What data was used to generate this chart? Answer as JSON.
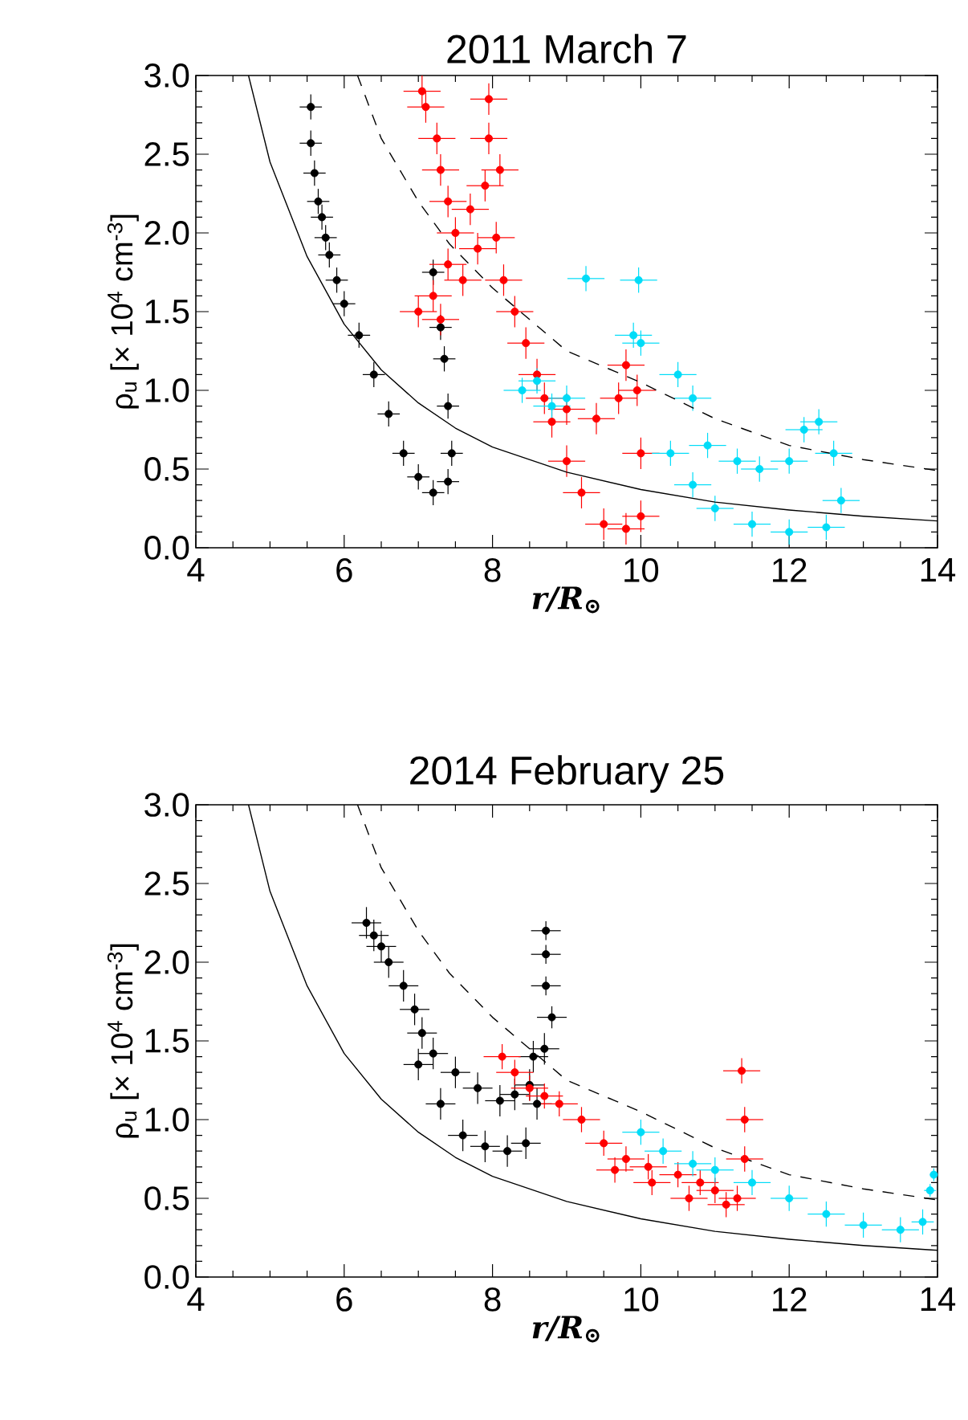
{
  "chart_data": [
    {
      "type": "scatter",
      "title": "2011 March 7",
      "xlabel": "r/R$_{⊙}$",
      "ylabel": "ρ$_{u}$ [× 10$^{4}$ cm$^{-3}$]",
      "xlim": [
        4,
        14
      ],
      "ylim": [
        0,
        3
      ],
      "xticks": [
        4,
        6,
        8,
        10,
        12,
        14
      ],
      "yticks": [
        {
          "value": 0,
          "label": "0.0"
        },
        {
          "value": 0.5,
          "label": "0.5"
        },
        {
          "value": 1,
          "label": "1.0"
        },
        {
          "value": 1.5,
          "label": "1.5"
        },
        {
          "value": 2,
          "label": "2.0"
        },
        {
          "value": 2.5,
          "label": "2.5"
        },
        {
          "value": 3,
          "label": "3.0"
        }
      ],
      "series": [
        {
          "color": "#000000",
          "marker": "circle",
          "x": [
            5.55,
            5.55,
            5.6,
            5.65,
            5.7,
            5.75,
            5.8,
            5.9,
            6.0,
            6.2,
            6.4,
            6.6,
            6.8,
            7.0,
            7.2,
            7.4,
            7.45,
            7.4,
            7.35,
            7.3,
            7.2
          ],
          "values": [
            2.8,
            2.57,
            2.38,
            2.2,
            2.1,
            1.97,
            1.86,
            1.7,
            1.55,
            1.35,
            1.1,
            0.85,
            0.6,
            0.45,
            0.35,
            0.42,
            0.6,
            0.9,
            1.2,
            1.4,
            1.75
          ],
          "errors": [
            0.08,
            0.08,
            0.08,
            0.08,
            0.08,
            0.08,
            0.08,
            0.08,
            0.08,
            0.08,
            0.08,
            0.08,
            0.08,
            0.08,
            0.08,
            0.08,
            0.08,
            0.08,
            0.08,
            0.08,
            0.08
          ],
          "xerrors": [
            0.15,
            0.15,
            0.15,
            0.15,
            0.15,
            0.15,
            0.15,
            0.15,
            0.15,
            0.15,
            0.15,
            0.15,
            0.15,
            0.15,
            0.15,
            0.15,
            0.15,
            0.15,
            0.15,
            0.15,
            0.15
          ]
        },
        {
          "color": "#ff0000",
          "marker": "circle",
          "x": [
            7.05,
            7.1,
            7.25,
            7.3,
            7.4,
            7.5,
            7.4,
            7.2,
            7.0,
            7.3,
            7.6,
            7.8,
            7.7,
            7.9,
            7.95,
            7.95,
            8.1,
            8.05,
            8.15,
            8.3,
            8.45,
            8.6,
            8.8,
            9.0,
            9.2,
            9.5,
            9.8,
            10.0,
            10.0,
            9.95,
            9.8,
            9.7,
            9.4,
            9.0,
            8.7
          ],
          "values": [
            2.9,
            2.8,
            2.6,
            2.4,
            2.2,
            2.0,
            1.8,
            1.6,
            1.5,
            1.45,
            1.7,
            1.9,
            2.15,
            2.3,
            2.6,
            2.85,
            2.4,
            1.97,
            1.7,
            1.5,
            1.3,
            1.1,
            0.8,
            0.55,
            0.35,
            0.15,
            0.12,
            0.2,
            0.6,
            1.0,
            1.16,
            0.95,
            0.82,
            0.88,
            0.95
          ],
          "errors": [
            0.1,
            0.1,
            0.1,
            0.1,
            0.1,
            0.1,
            0.1,
            0.1,
            0.1,
            0.1,
            0.1,
            0.1,
            0.1,
            0.1,
            0.1,
            0.1,
            0.1,
            0.1,
            0.1,
            0.1,
            0.1,
            0.1,
            0.1,
            0.1,
            0.1,
            0.1,
            0.1,
            0.1,
            0.1,
            0.1,
            0.1,
            0.1,
            0.1,
            0.1,
            0.1
          ],
          "xerrors": [
            0.25,
            0.25,
            0.25,
            0.25,
            0.25,
            0.25,
            0.25,
            0.25,
            0.25,
            0.25,
            0.25,
            0.25,
            0.25,
            0.25,
            0.25,
            0.25,
            0.25,
            0.25,
            0.25,
            0.25,
            0.25,
            0.25,
            0.25,
            0.25,
            0.25,
            0.25,
            0.25,
            0.25,
            0.25,
            0.25,
            0.25,
            0.25,
            0.25,
            0.25,
            0.25
          ]
        },
        {
          "color": "#00dcf8",
          "marker": "circle",
          "x": [
            8.4,
            8.6,
            8.8,
            9.0,
            9.26,
            9.97,
            9.9,
            10.0,
            10.5,
            10.7,
            10.4,
            10.7,
            11.0,
            11.5,
            12.0,
            12.5,
            12.7,
            12.6,
            12.4,
            12.2,
            12.0,
            11.6,
            11.3,
            10.9
          ],
          "values": [
            1.0,
            1.06,
            0.9,
            0.95,
            1.71,
            1.7,
            1.35,
            1.3,
            1.1,
            0.95,
            0.6,
            0.4,
            0.25,
            0.15,
            0.1,
            0.13,
            0.3,
            0.6,
            0.8,
            0.75,
            0.55,
            0.5,
            0.55,
            0.65
          ],
          "errors": [
            0.08,
            0.08,
            0.08,
            0.08,
            0.08,
            0.08,
            0.08,
            0.08,
            0.08,
            0.08,
            0.08,
            0.08,
            0.08,
            0.08,
            0.08,
            0.08,
            0.08,
            0.08,
            0.08,
            0.08,
            0.08,
            0.08,
            0.08,
            0.08
          ],
          "xerrors": [
            0.25,
            0.25,
            0.25,
            0.25,
            0.25,
            0.25,
            0.25,
            0.25,
            0.25,
            0.25,
            0.25,
            0.25,
            0.25,
            0.25,
            0.25,
            0.25,
            0.25,
            0.25,
            0.25,
            0.25,
            0.25,
            0.25,
            0.25,
            0.25
          ]
        },
        {
          "type": "line",
          "marker": "none",
          "color": "#000000",
          "line_style": "solid",
          "x": [
            4.71,
            5,
            5.5,
            6,
            6.5,
            7,
            7.5,
            8,
            9,
            10,
            11,
            12,
            13,
            14
          ],
          "values": [
            3.0,
            2.45,
            1.85,
            1.42,
            1.13,
            0.92,
            0.76,
            0.64,
            0.48,
            0.37,
            0.29,
            0.24,
            0.2,
            0.17
          ]
        },
        {
          "type": "line",
          "marker": "none",
          "color": "#000000",
          "line_style": "dashed",
          "x": [
            6.18,
            6.5,
            7,
            7.42,
            8,
            8.5,
            9,
            10,
            11,
            12,
            13,
            14
          ],
          "values": [
            3.0,
            2.6,
            2.2,
            1.93,
            1.65,
            1.45,
            1.25,
            1.05,
            0.82,
            0.65,
            0.56,
            0.49
          ]
        }
      ]
    },
    {
      "type": "scatter",
      "title": "2014 February 25",
      "xlabel": "r/R$_{⊙}$",
      "ylabel": "ρ$_{u}$ [× 10$^{4}$ cm$^{-3}$]",
      "xlim": [
        4,
        14
      ],
      "ylim": [
        0,
        3
      ],
      "xticks": [
        4,
        6,
        8,
        10,
        12,
        14
      ],
      "yticks": [
        {
          "value": 0,
          "label": "0.0"
        },
        {
          "value": 0.5,
          "label": "0.5"
        },
        {
          "value": 1,
          "label": "1.0"
        },
        {
          "value": 1.5,
          "label": "1.5"
        },
        {
          "value": 2,
          "label": "2.0"
        },
        {
          "value": 2.5,
          "label": "2.5"
        },
        {
          "value": 3,
          "label": "3.0"
        }
      ],
      "series": [
        {
          "color": "#000000",
          "marker": "circle",
          "x": [
            6.3,
            6.4,
            6.5,
            6.6,
            6.8,
            6.95,
            7.05,
            7.2,
            7.5,
            7.8,
            8.1,
            8.3,
            8.5,
            8.55,
            7.0,
            7.3,
            7.6,
            7.9,
            8.2,
            8.45,
            8.6,
            8.7,
            8.8,
            8.72,
            8.72,
            8.72
          ],
          "values": [
            2.25,
            2.17,
            2.1,
            2.0,
            1.85,
            1.7,
            1.55,
            1.42,
            1.3,
            1.2,
            1.12,
            1.16,
            1.22,
            1.4,
            1.35,
            1.1,
            0.9,
            0.83,
            0.8,
            0.85,
            1.1,
            1.45,
            1.65,
            1.85,
            2.05,
            2.2
          ],
          "errors": [
            0.1,
            0.1,
            0.1,
            0.1,
            0.1,
            0.1,
            0.1,
            0.1,
            0.1,
            0.1,
            0.1,
            0.1,
            0.1,
            0.1,
            0.1,
            0.1,
            0.1,
            0.1,
            0.1,
            0.1,
            0.1,
            0.1,
            0.07,
            0.06,
            0.06,
            0.06
          ],
          "xerrors": [
            0.2,
            0.2,
            0.2,
            0.2,
            0.2,
            0.2,
            0.2,
            0.2,
            0.2,
            0.2,
            0.2,
            0.2,
            0.2,
            0.2,
            0.2,
            0.2,
            0.2,
            0.2,
            0.2,
            0.2,
            0.2,
            0.2,
            0.2,
            0.2,
            0.2,
            0.2
          ]
        },
        {
          "color": "#ff0000",
          "marker": "circle",
          "x": [
            8.13,
            8.3,
            8.5,
            8.7,
            8.9,
            9.2,
            9.5,
            9.8,
            10.1,
            10.5,
            10.8,
            11.0,
            9.65,
            10.15,
            10.65,
            11.15,
            11.3,
            11.4,
            11.4,
            11.36
          ],
          "values": [
            1.4,
            1.3,
            1.2,
            1.15,
            1.1,
            1.0,
            0.85,
            0.75,
            0.7,
            0.65,
            0.6,
            0.55,
            0.68,
            0.6,
            0.5,
            0.46,
            0.5,
            0.75,
            1.0,
            1.31
          ],
          "errors": [
            0.08,
            0.08,
            0.08,
            0.08,
            0.08,
            0.08,
            0.08,
            0.08,
            0.08,
            0.08,
            0.08,
            0.08,
            0.08,
            0.08,
            0.08,
            0.08,
            0.08,
            0.08,
            0.08,
            0.08
          ],
          "xerrors": [
            0.25,
            0.25,
            0.25,
            0.25,
            0.25,
            0.25,
            0.25,
            0.25,
            0.25,
            0.25,
            0.25,
            0.25,
            0.25,
            0.25,
            0.25,
            0.25,
            0.25,
            0.25,
            0.25,
            0.25
          ]
        },
        {
          "color": "#00dcf8",
          "marker": "circle",
          "x": [
            10.0,
            10.3,
            10.7,
            11.0,
            11.5,
            12.0,
            12.5,
            13.0,
            13.5,
            13.8,
            13.9,
            13.95
          ],
          "values": [
            0.92,
            0.8,
            0.72,
            0.68,
            0.6,
            0.5,
            0.4,
            0.33,
            0.3,
            0.35,
            0.55,
            0.65
          ],
          "errors": [
            0.08,
            0.08,
            0.08,
            0.08,
            0.08,
            0.08,
            0.08,
            0.08,
            0.08,
            0.08,
            0.04,
            0.04
          ],
          "xerrors": [
            0.25,
            0.25,
            0.25,
            0.25,
            0.25,
            0.25,
            0.25,
            0.25,
            0.25,
            0.15,
            0.08,
            0.05
          ]
        },
        {
          "type": "line",
          "marker": "none",
          "color": "#000000",
          "line_style": "solid",
          "x": [
            4.71,
            5,
            5.5,
            6,
            6.5,
            7,
            7.5,
            8,
            9,
            10,
            11,
            12,
            13,
            14
          ],
          "values": [
            3.0,
            2.45,
            1.85,
            1.42,
            1.13,
            0.92,
            0.76,
            0.64,
            0.48,
            0.37,
            0.29,
            0.24,
            0.2,
            0.17
          ]
        },
        {
          "type": "line",
          "marker": "none",
          "color": "#000000",
          "line_style": "dashed",
          "x": [
            6.18,
            6.5,
            7,
            7.42,
            8,
            8.5,
            9,
            10,
            11,
            12,
            13,
            14
          ],
          "values": [
            3.0,
            2.6,
            2.2,
            1.93,
            1.65,
            1.45,
            1.25,
            1.05,
            0.82,
            0.65,
            0.56,
            0.49
          ]
        }
      ]
    }
  ]
}
